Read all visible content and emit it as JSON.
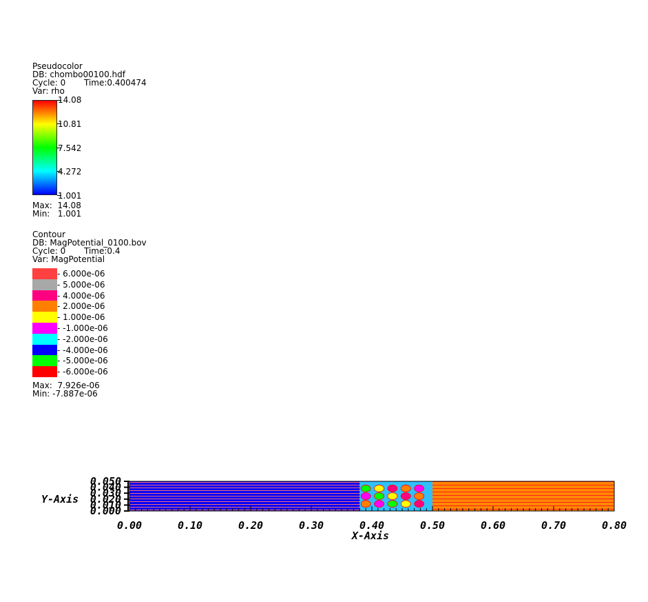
{
  "pseudocolor_legend": {
    "title": "Pseudocolor",
    "db": "DB: chombo00100.hdf",
    "cycle": "Cycle: 0",
    "time": "Time:0.400474",
    "var": "Var: rho",
    "ticks": [
      "14.08",
      "10.81",
      "7.542",
      "4.272",
      "1.001"
    ],
    "max": "Max:  14.08",
    "min": "Min:   1.001"
  },
  "contour_legend": {
    "title": "Contour",
    "db": "DB: MagPotential_0100.bov",
    "cycle": "Cycle: 0",
    "time": "Time:0.4",
    "var": "Var: MagPotential",
    "levels": [
      {
        "label": "6.000e-06",
        "color": "#ff4040"
      },
      {
        "label": "5.000e-06",
        "color": "#a8a8a8"
      },
      {
        "label": "4.000e-06",
        "color": "#ff0080"
      },
      {
        "label": "2.000e-06",
        "color": "#ff8000"
      },
      {
        "label": "1.000e-06",
        "color": "#ffff00"
      },
      {
        "label": "-1.000e-06",
        "color": "#ff00ff"
      },
      {
        "label": "-2.000e-06",
        "color": "#00ffff"
      },
      {
        "label": "-4.000e-06",
        "color": "#0000ff"
      },
      {
        "label": "-5.000e-06",
        "color": "#00ff00"
      },
      {
        "label": "-6.000e-06",
        "color": "#ff0000"
      }
    ],
    "max": "Max:  7.926e-06",
    "min": "Min: -7.887e-06"
  },
  "chart_data": {
    "type": "heatmap",
    "xlabel": "X-Axis",
    "ylabel": "Y-Axis",
    "xlim": [
      0.0,
      0.8
    ],
    "ylim": [
      0.0,
      0.05
    ],
    "x_ticks": [
      "0.00",
      "0.10",
      "0.20",
      "0.30",
      "0.40",
      "0.50",
      "0.60",
      "0.70",
      "0.80"
    ],
    "y_ticks": [
      "0.000",
      "0.010",
      "0.020",
      "0.030",
      "0.040",
      "0.050"
    ],
    "regions": [
      {
        "x": [
          0.0,
          0.38
        ],
        "color": "#0000ff"
      },
      {
        "x": [
          0.38,
          0.5
        ],
        "color": "#30c0ff"
      },
      {
        "x": [
          0.5,
          0.8
        ],
        "color": "#ff8000"
      }
    ]
  }
}
